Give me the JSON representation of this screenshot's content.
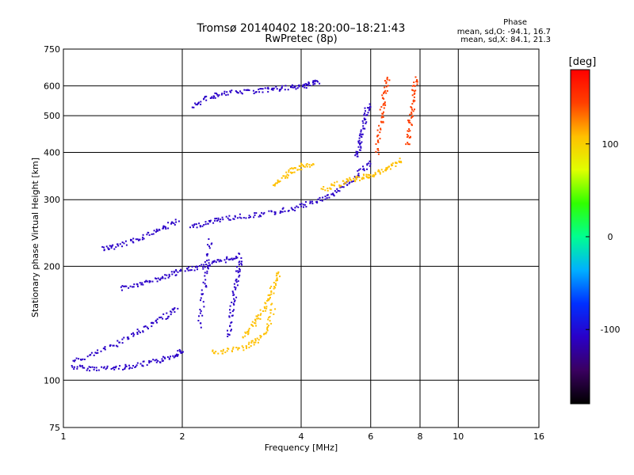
{
  "chart_data": {
    "type": "scatter",
    "title": "Tromsø 20140402 18:20:00–18:21:43",
    "subtitle": "RwPretec (8p)",
    "xlabel": "Frequency [MHz]",
    "ylabel": "Stationary phase Virtual Height [km]",
    "x_scale": "log",
    "y_scale": "log",
    "xlim": [
      1,
      16
    ],
    "ylim": [
      75,
      750
    ],
    "x_ticks": [
      1,
      2,
      4,
      6,
      8,
      10,
      16
    ],
    "x_tick_labels": [
      "1",
      "2",
      "4",
      "6",
      "8",
      "10",
      "16"
    ],
    "y_ticks": [
      75,
      100,
      200,
      300,
      400,
      500,
      600,
      750
    ],
    "y_tick_labels": [
      "75",
      "100",
      "200",
      "300",
      "400",
      "500",
      "600",
      "750"
    ],
    "x_gridlines": [
      2,
      4,
      6,
      8,
      10
    ],
    "y_gridlines": [
      100,
      200,
      300,
      400,
      500,
      600
    ],
    "grid": true,
    "legend": {
      "title": "Phase",
      "line1": "mean, sd,O: -94.1, 16.7",
      "line2": "mean, sd,X: 84.1, 21.3",
      "placement": "top-right"
    },
    "colorbar": {
      "label": "[deg]",
      "range": [
        -180,
        180
      ],
      "ticks": [
        100,
        0,
        -100
      ],
      "tick_labels": [
        "100",
        "0",
        "-100"
      ],
      "colors": [
        "#000000",
        "#3a0060",
        "#2a00c8",
        "#0030ff",
        "#00b0ff",
        "#00ff90",
        "#30ff00",
        "#e0ff00",
        "#ffc000",
        "#ff4000",
        "#ff0000"
      ]
    },
    "series_traces": [
      {
        "phase": -100,
        "x": [
          1.05,
          1.15,
          1.3,
          1.45,
          1.6,
          1.75,
          1.9,
          2.0
        ],
        "y": [
          109,
          108,
          108,
          109,
          111,
          113,
          117,
          121
        ]
      },
      {
        "phase": -100,
        "x": [
          1.05,
          1.2,
          1.35,
          1.5,
          1.65,
          1.8,
          1.95
        ],
        "y": [
          112,
          118,
          125,
          133,
          140,
          148,
          156
        ]
      },
      {
        "phase": -100,
        "x": [
          1.4,
          1.55,
          1.7,
          1.85,
          2.0,
          2.2,
          2.4,
          2.6,
          2.8
        ],
        "y": [
          176,
          180,
          185,
          190,
          196,
          200,
          205,
          210,
          215
        ]
      },
      {
        "phase": -100,
        "x": [
          1.25,
          1.35,
          1.5,
          1.65,
          1.8,
          1.95
        ],
        "y": [
          224,
          226,
          235,
          245,
          255,
          265
        ]
      },
      {
        "phase": -100,
        "x": [
          2.1,
          2.3,
          2.5,
          2.8,
          3.2,
          3.6,
          4.0,
          4.4,
          4.8,
          5.2,
          5.6,
          6.0
        ],
        "y": [
          255,
          262,
          268,
          272,
          276,
          282,
          290,
          300,
          312,
          330,
          355,
          380
        ]
      },
      {
        "phase": -100,
        "x": [
          2.1,
          2.3,
          2.5,
          2.8,
          3.1,
          3.4,
          3.7,
          4.0,
          4.2,
          4.4
        ],
        "y": [
          530,
          560,
          575,
          580,
          585,
          590,
          595,
          600,
          610,
          620
        ]
      },
      {
        "phase": -100,
        "x": [
          5.5,
          5.6,
          5.7,
          5.8,
          5.9
        ],
        "y": [
          390,
          420,
          460,
          500,
          540
        ]
      },
      {
        "phase": -100,
        "x": [
          2.6,
          2.65,
          2.7,
          2.75,
          2.8
        ],
        "y": [
          130,
          150,
          170,
          190,
          210
        ]
      },
      {
        "phase": -100,
        "x": [
          2.2,
          2.25,
          2.3,
          2.35
        ],
        "y": [
          140,
          170,
          200,
          240
        ]
      },
      {
        "phase": 120,
        "x": [
          2.35,
          2.6,
          2.9,
          3.1,
          3.3,
          3.4
        ],
        "y": [
          119,
          120,
          123,
          128,
          140,
          160
        ]
      },
      {
        "phase": 110,
        "x": [
          2.85,
          3.0,
          3.15,
          3.3,
          3.4,
          3.5
        ],
        "y": [
          130,
          140,
          150,
          165,
          180,
          195
        ]
      },
      {
        "phase": 120,
        "x": [
          4.5,
          4.9,
          5.3,
          5.7,
          6.0,
          6.4,
          6.8,
          7.2
        ],
        "y": [
          320,
          330,
          340,
          345,
          350,
          360,
          372,
          385
        ]
      },
      {
        "phase": 130,
        "x": [
          6.2,
          6.3,
          6.4,
          6.5,
          6.6
        ],
        "y": [
          400,
          460,
          520,
          580,
          640
        ]
      },
      {
        "phase": 130,
        "x": [
          7.4,
          7.5,
          7.6,
          7.7,
          7.8
        ],
        "y": [
          420,
          470,
          520,
          580,
          640
        ]
      },
      {
        "phase": 100,
        "x": [
          3.4,
          3.6,
          3.8,
          4.0,
          4.3
        ],
        "y": [
          330,
          345,
          360,
          370,
          375
        ]
      }
    ]
  }
}
